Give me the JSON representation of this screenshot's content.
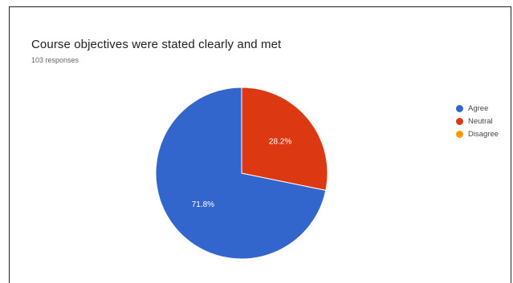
{
  "chart_data": {
    "type": "pie",
    "title": "Course objectives were stated clearly and met",
    "subtitle": "103 responses",
    "categories": [
      "Agree",
      "Neutral",
      "Disagree"
    ],
    "values": [
      71.8,
      28.2,
      0
    ],
    "labels": [
      "71.8%",
      "28.2%",
      ""
    ],
    "colors": [
      "#3366cc",
      "#dc3912",
      "#ff9900"
    ],
    "legend_position": "right"
  },
  "legend": {
    "items": [
      {
        "label": "Agree",
        "color": "#3366cc"
      },
      {
        "label": "Neutral",
        "color": "#dc3912"
      },
      {
        "label": "Disagree",
        "color": "#ff9900"
      }
    ]
  }
}
